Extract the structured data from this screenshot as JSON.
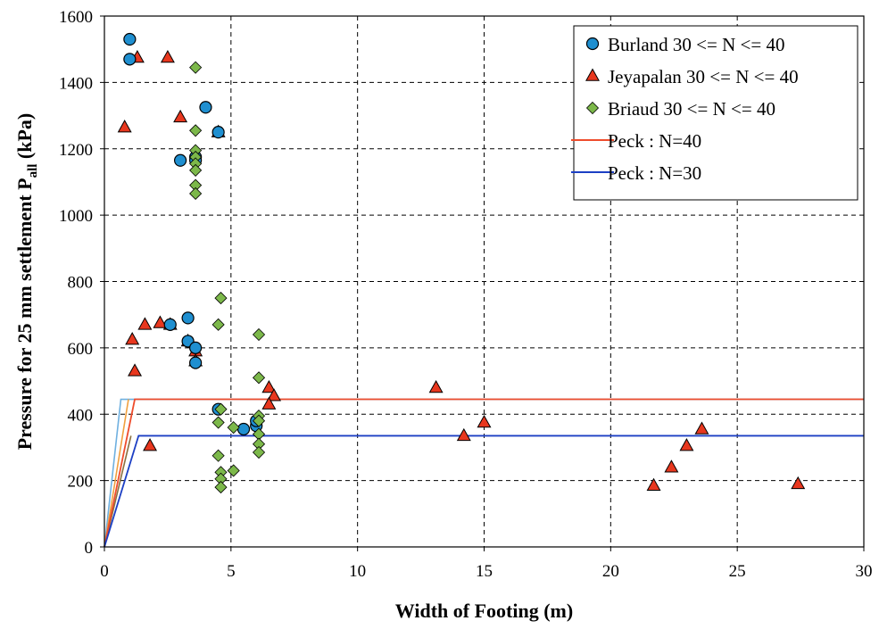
{
  "chart_data": {
    "type": "scatter",
    "xlabel": "Width of Footing (m)",
    "ylabel": {
      "main": "Pressure for 25 mm settlement P",
      "sub": "all",
      "unit": " (kPa)"
    },
    "xlim": [
      0,
      30
    ],
    "ylim": [
      0,
      1600
    ],
    "x_ticks": [
      0,
      5,
      10,
      15,
      20,
      25,
      30
    ],
    "y_ticks": [
      0,
      200,
      400,
      600,
      800,
      1000,
      1200,
      1400,
      1600
    ],
    "grid": "dashed",
    "legend_position": "top-right",
    "series": [
      {
        "name": "Burland 30 <= N <= 40",
        "marker": "circle",
        "color": "#1f8fd0",
        "points": [
          [
            1.0,
            1530
          ],
          [
            1.0,
            1470
          ],
          [
            3.0,
            1165
          ],
          [
            4.0,
            1325
          ],
          [
            4.5,
            1250
          ],
          [
            3.6,
            1175
          ],
          [
            3.6,
            1165
          ],
          [
            3.3,
            690
          ],
          [
            2.6,
            670
          ],
          [
            3.3,
            620
          ],
          [
            3.6,
            600
          ],
          [
            3.6,
            555
          ],
          [
            4.5,
            415
          ],
          [
            5.5,
            355
          ],
          [
            6.0,
            365
          ],
          [
            6.0,
            380
          ]
        ]
      },
      {
        "name": "Jeyapalan 30 <= N <= 40",
        "marker": "triangle",
        "color": "#e8371e",
        "points": [
          [
            0.8,
            1265
          ],
          [
            1.3,
            1475
          ],
          [
            2.5,
            1475
          ],
          [
            3.0,
            1295
          ],
          [
            4.5,
            1250
          ],
          [
            1.1,
            625
          ],
          [
            1.6,
            670
          ],
          [
            2.2,
            675
          ],
          [
            2.6,
            670
          ],
          [
            3.3,
            620
          ],
          [
            3.6,
            590
          ],
          [
            3.6,
            560
          ],
          [
            1.2,
            530
          ],
          [
            1.8,
            305
          ],
          [
            6.5,
            480
          ],
          [
            6.7,
            455
          ],
          [
            6.5,
            430
          ],
          [
            13.1,
            480
          ],
          [
            14.2,
            335
          ],
          [
            15.0,
            375
          ],
          [
            21.7,
            185
          ],
          [
            22.4,
            240
          ],
          [
            23.0,
            305
          ],
          [
            23.6,
            355
          ],
          [
            27.4,
            190
          ]
        ]
      },
      {
        "name": "Briaud 30 <= N <= 40",
        "marker": "diamond",
        "color": "#7cb84a",
        "points": [
          [
            3.6,
            1445
          ],
          [
            3.6,
            1255
          ],
          [
            3.6,
            1195
          ],
          [
            3.6,
            1175
          ],
          [
            3.6,
            1155
          ],
          [
            3.6,
            1135
          ],
          [
            3.6,
            1090
          ],
          [
            3.6,
            1065
          ],
          [
            4.6,
            750
          ],
          [
            4.5,
            670
          ],
          [
            6.1,
            640
          ],
          [
            6.1,
            510
          ],
          [
            4.6,
            415
          ],
          [
            4.5,
            375
          ],
          [
            5.1,
            360
          ],
          [
            6.1,
            395
          ],
          [
            6.1,
            380
          ],
          [
            6.1,
            340
          ],
          [
            6.1,
            310
          ],
          [
            6.1,
            285
          ],
          [
            4.5,
            275
          ],
          [
            4.6,
            225
          ],
          [
            5.1,
            230
          ],
          [
            4.6,
            205
          ],
          [
            4.6,
            180
          ]
        ]
      },
      {
        "name": "Peck : N=40",
        "marker": "line",
        "color": "#ee4c2c",
        "points": [
          [
            0,
            0
          ],
          [
            1.2,
            445
          ],
          [
            30,
            445
          ]
        ]
      },
      {
        "name": "Peck : N=30",
        "marker": "line",
        "color": "#1c3fc4",
        "points": [
          [
            0,
            0
          ],
          [
            1.35,
            335
          ],
          [
            30,
            335
          ]
        ]
      }
    ],
    "extra_lines": [
      {
        "color": "#6fb0e0",
        "points": [
          [
            0,
            0
          ],
          [
            0.65,
            445
          ],
          [
            30,
            445
          ]
        ]
      },
      {
        "color": "#f0a040",
        "points": [
          [
            0,
            0
          ],
          [
            0.95,
            445
          ]
        ]
      },
      {
        "color": "#8a7040",
        "points": [
          [
            0,
            0
          ],
          [
            1.05,
            335
          ]
        ]
      }
    ]
  }
}
